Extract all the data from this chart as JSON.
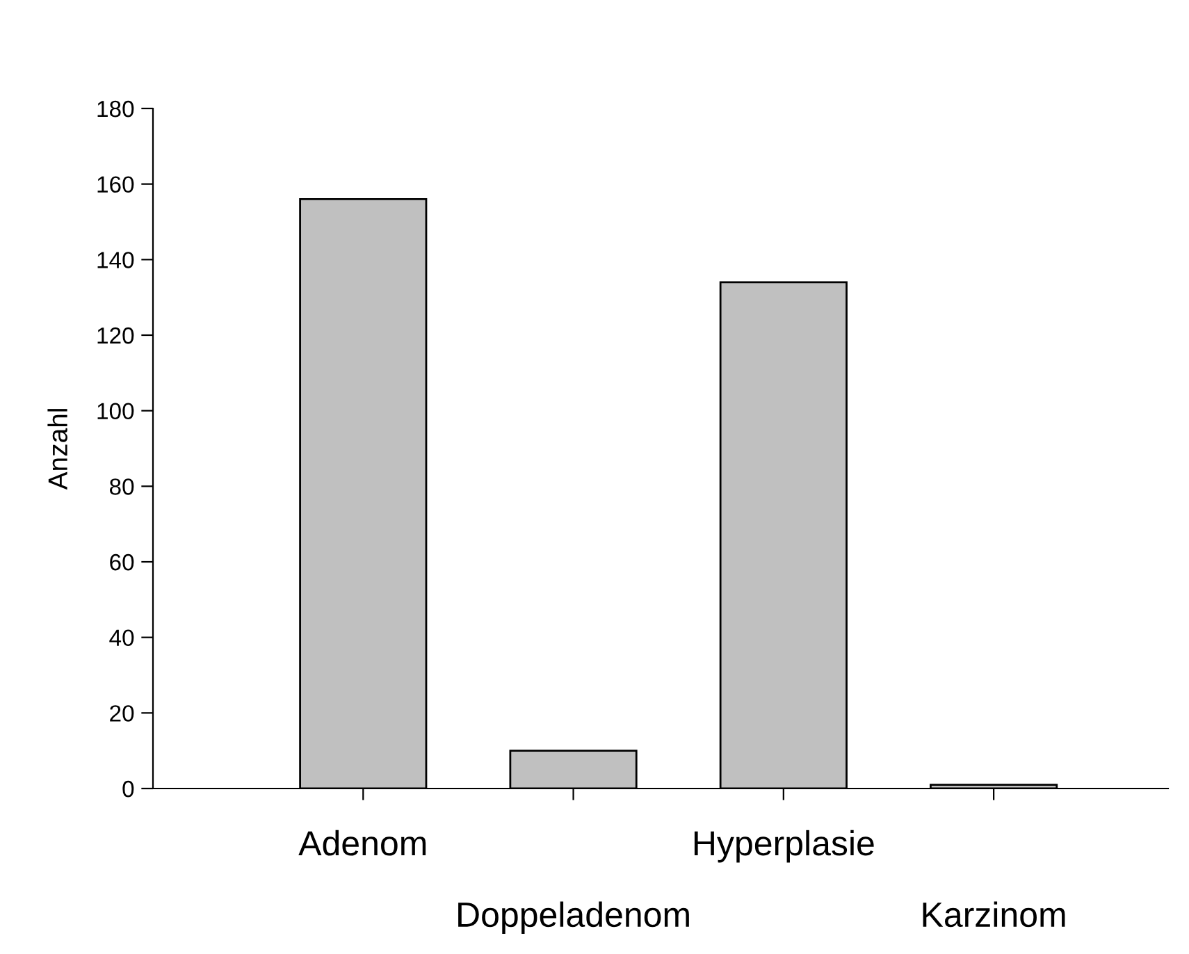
{
  "chart_data": {
    "type": "bar",
    "ylabel": "Anzahl",
    "categories": [
      "Adenom",
      "Doppeladenom",
      "Hyperplasie",
      "Karzinom"
    ],
    "values": [
      156,
      10,
      134,
      1
    ],
    "color": "#c0c0c0",
    "ylim": [
      0,
      180
    ],
    "yticks": [
      0,
      20,
      40,
      60,
      80,
      100,
      120,
      140,
      160,
      180
    ],
    "grid": false
  }
}
